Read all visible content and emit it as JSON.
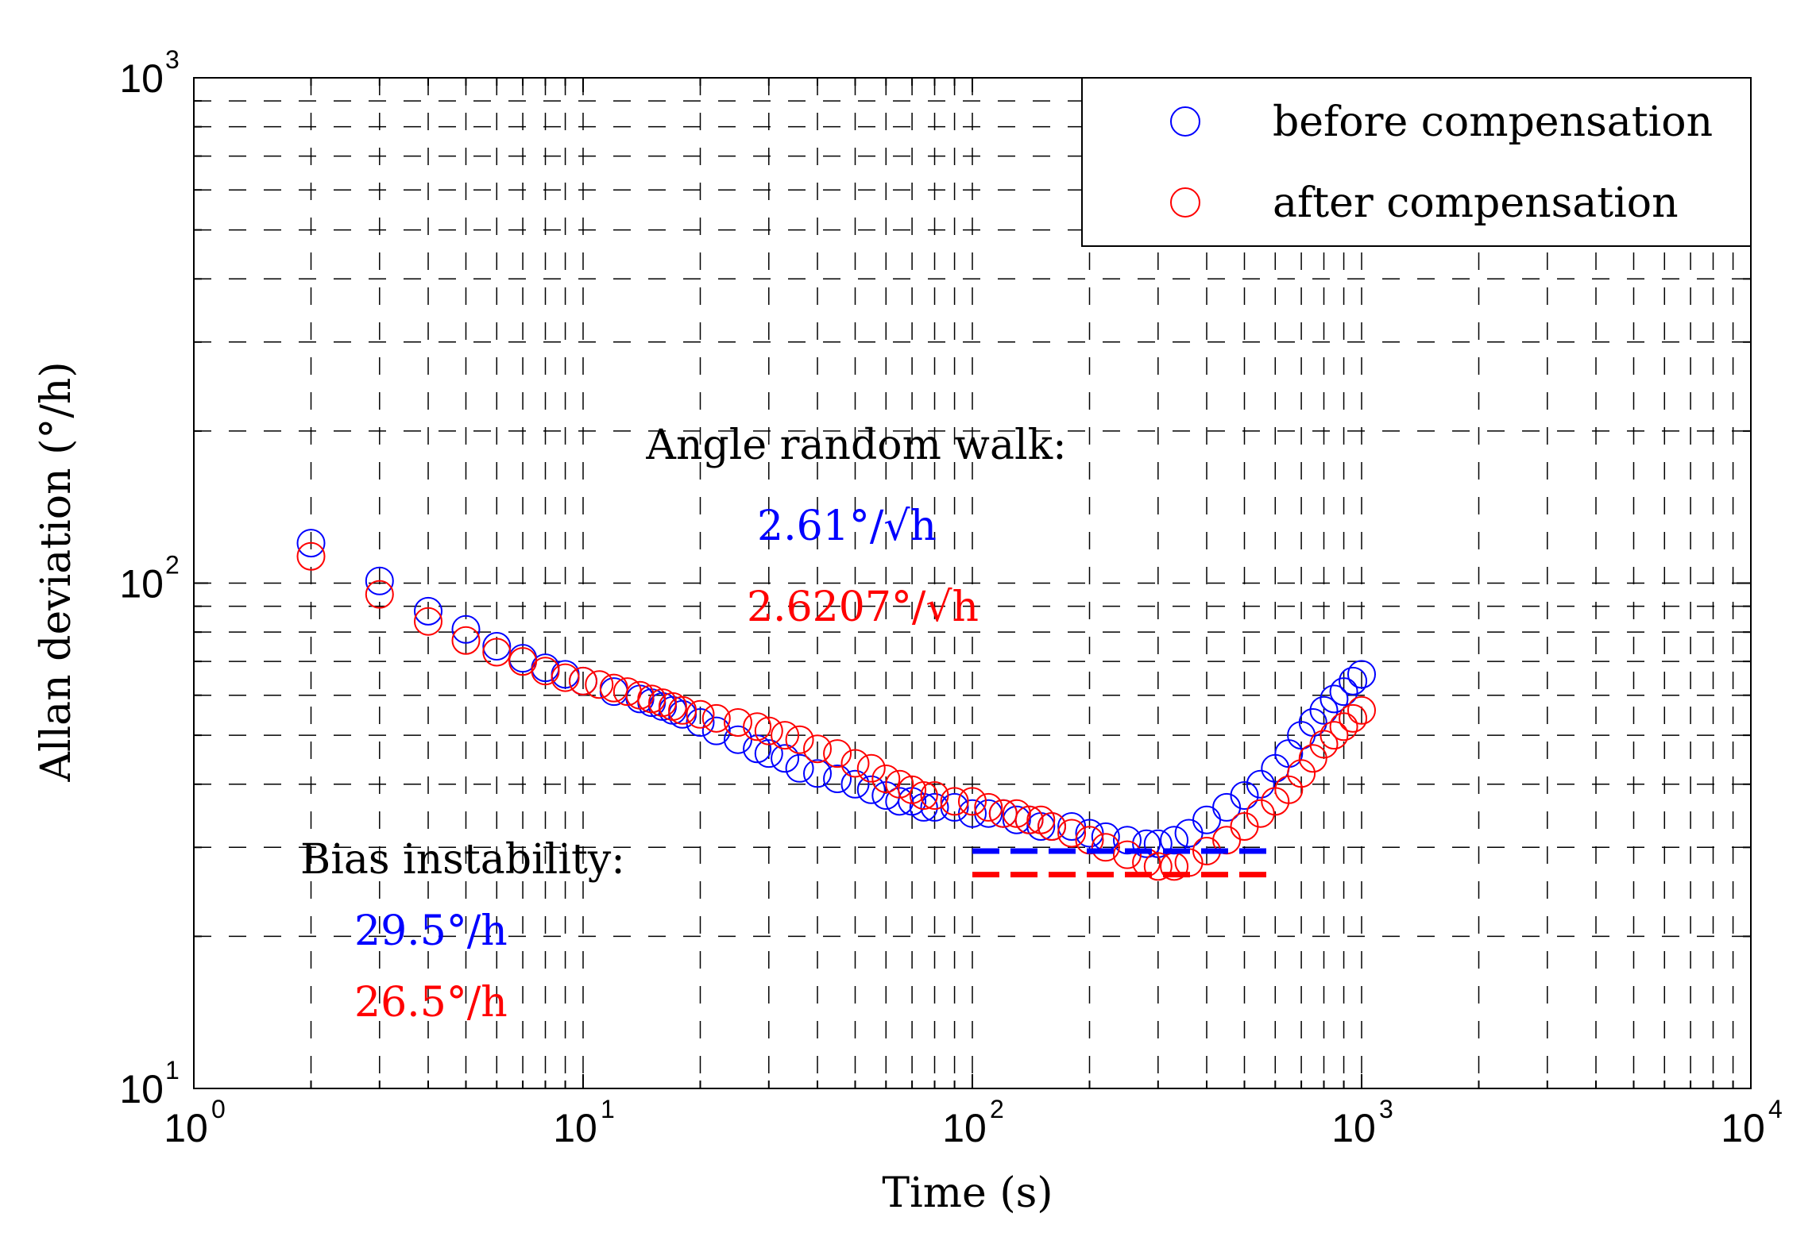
{
  "chart_data": {
    "type": "scatter",
    "xscale": "log",
    "yscale": "log",
    "xlim": [
      1,
      10000
    ],
    "ylim": [
      10,
      1000
    ],
    "grid": true,
    "xlabel": "Time (s)",
    "ylabel": "Allan deviation (°/h)",
    "x_ticks": [
      {
        "base": "10",
        "exp": "0",
        "value": 1
      },
      {
        "base": "10",
        "exp": "1",
        "value": 10
      },
      {
        "base": "10",
        "exp": "2",
        "value": 100
      },
      {
        "base": "10",
        "exp": "3",
        "value": 1000
      },
      {
        "base": "10",
        "exp": "4",
        "value": 10000
      }
    ],
    "y_ticks": [
      {
        "base": "10",
        "exp": "1",
        "value": 10
      },
      {
        "base": "10",
        "exp": "2",
        "value": 100
      },
      {
        "base": "10",
        "exp": "3",
        "value": 1000
      }
    ],
    "legend": {
      "position": "top-right",
      "entries": [
        {
          "label": "before compensation",
          "color": "#0000ff"
        },
        {
          "label": "after compensation",
          "color": "#ff0000"
        }
      ]
    },
    "series": [
      {
        "name": "before compensation",
        "color": "#0000ff",
        "marker": "circle",
        "x": [
          2,
          3,
          4,
          5,
          6,
          7,
          8,
          9,
          10,
          12,
          14,
          15,
          16,
          17,
          18,
          20,
          22,
          25,
          28,
          30,
          33,
          36,
          40,
          45,
          50,
          55,
          60,
          65,
          70,
          75,
          80,
          90,
          100,
          110,
          120,
          130,
          140,
          150,
          160,
          180,
          200,
          220,
          250,
          280,
          300,
          330,
          360,
          400,
          450,
          500,
          550,
          600,
          650,
          700,
          750,
          800,
          850,
          900,
          950,
          1000
        ],
        "y": [
          120,
          101,
          88,
          81,
          75,
          71,
          68,
          66,
          64,
          61,
          59,
          58,
          57,
          56,
          55,
          53,
          51,
          49,
          47,
          46,
          45,
          43,
          42,
          41,
          40,
          39,
          38,
          37,
          37,
          36,
          36,
          36,
          35,
          35,
          35,
          34,
          34,
          33,
          33,
          33,
          32,
          31.5,
          31,
          30.5,
          30.5,
          31,
          32,
          34,
          36,
          38,
          40,
          43,
          46,
          50,
          53,
          56,
          59,
          61,
          64,
          66
        ]
      },
      {
        "name": "after compensation",
        "color": "#ff0000",
        "marker": "circle",
        "x": [
          2,
          3,
          4,
          5,
          6,
          7,
          8,
          9,
          10,
          11,
          12,
          13,
          14,
          15,
          16,
          17,
          18,
          20,
          22,
          25,
          28,
          30,
          33,
          36,
          40,
          45,
          50,
          55,
          60,
          65,
          70,
          75,
          80,
          90,
          100,
          110,
          120,
          130,
          140,
          150,
          160,
          180,
          200,
          220,
          250,
          280,
          300,
          330,
          360,
          400,
          450,
          500,
          550,
          600,
          650,
          700,
          750,
          800,
          850,
          900,
          950,
          1000
        ],
        "y": [
          113,
          95,
          84,
          77,
          73,
          70,
          67,
          65,
          64,
          63,
          62,
          61,
          60,
          59,
          58,
          57,
          56,
          55,
          54,
          53,
          52,
          51,
          50,
          49,
          47,
          46,
          44,
          43,
          41,
          40,
          39,
          38,
          38,
          37,
          37,
          36,
          35,
          35,
          34,
          34,
          33,
          32,
          31,
          30,
          29,
          28,
          27.5,
          27.5,
          28,
          29.5,
          31,
          33,
          35,
          37,
          39,
          42,
          45,
          48,
          50,
          52,
          54,
          56
        ]
      }
    ],
    "reference_lines": [
      {
        "series": "before compensation",
        "y": 29.5,
        "x_range": [
          100,
          600
        ],
        "color": "#0000ff",
        "style": "dashed"
      },
      {
        "series": "after compensation",
        "y": 26.5,
        "x_range": [
          100,
          600
        ],
        "color": "#ff0000",
        "style": "dashed"
      }
    ],
    "annotations": {
      "arw_title": "Angle random walk:",
      "arw_before": "2.61°/√h",
      "arw_after": "2.6207°/√h",
      "bias_title": "Bias instability:",
      "bias_before": "29.5°/h",
      "bias_after": "26.5°/h"
    }
  }
}
